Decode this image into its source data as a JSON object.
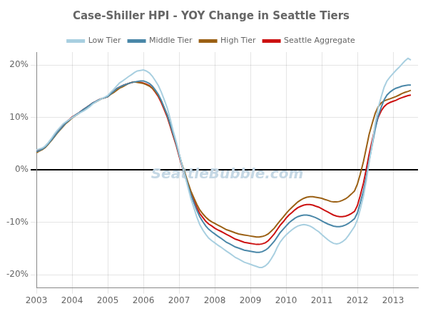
{
  "chart_data": {
    "type": "line",
    "title": "Case-Shiller HPI - YOY Change in Seattle Tiers",
    "x": [
      2003.0,
      2003.08,
      2003.17,
      2003.25,
      2003.33,
      2003.42,
      2003.5,
      2003.58,
      2003.67,
      2003.75,
      2003.83,
      2003.92,
      2004.0,
      2004.08,
      2004.17,
      2004.25,
      2004.33,
      2004.42,
      2004.5,
      2004.58,
      2004.67,
      2004.75,
      2004.83,
      2004.92,
      2005.0,
      2005.08,
      2005.17,
      2005.25,
      2005.33,
      2005.42,
      2005.5,
      2005.58,
      2005.67,
      2005.75,
      2005.83,
      2005.92,
      2006.0,
      2006.08,
      2006.17,
      2006.25,
      2006.33,
      2006.42,
      2006.5,
      2006.58,
      2006.67,
      2006.75,
      2006.83,
      2006.92,
      2007.0,
      2007.08,
      2007.17,
      2007.25,
      2007.33,
      2007.42,
      2007.5,
      2007.58,
      2007.67,
      2007.75,
      2007.83,
      2007.92,
      2008.0,
      2008.08,
      2008.17,
      2008.25,
      2008.33,
      2008.42,
      2008.5,
      2008.58,
      2008.67,
      2008.75,
      2008.83,
      2008.92,
      2009.0,
      2009.08,
      2009.17,
      2009.25,
      2009.33,
      2009.42,
      2009.5,
      2009.58,
      2009.67,
      2009.75,
      2009.83,
      2009.92,
      2010.0,
      2010.08,
      2010.17,
      2010.25,
      2010.33,
      2010.42,
      2010.5,
      2010.58,
      2010.67,
      2010.75,
      2010.83,
      2010.92,
      2011.0,
      2011.08,
      2011.17,
      2011.25,
      2011.33,
      2011.42,
      2011.5,
      2011.58,
      2011.67,
      2011.75,
      2011.83,
      2011.92,
      2012.0,
      2012.08,
      2012.17,
      2012.25,
      2012.33,
      2012.42,
      2012.5,
      2012.58,
      2012.67,
      2012.75,
      2012.83,
      2012.92,
      2013.0,
      2013.08,
      2013.17,
      2013.25,
      2013.33,
      2013.42,
      2013.5
    ],
    "series": [
      {
        "name": "Low Tier",
        "color": "#a8cfe0",
        "values": [
          0.038,
          0.04,
          0.042,
          0.046,
          0.052,
          0.06,
          0.068,
          0.075,
          0.082,
          0.088,
          0.092,
          0.096,
          0.1,
          0.103,
          0.107,
          0.11,
          0.113,
          0.117,
          0.121,
          0.126,
          0.13,
          0.133,
          0.136,
          0.139,
          0.142,
          0.148,
          0.154,
          0.16,
          0.166,
          0.17,
          0.174,
          0.178,
          0.182,
          0.186,
          0.189,
          0.19,
          0.191,
          0.189,
          0.185,
          0.179,
          0.171,
          0.161,
          0.149,
          0.135,
          0.118,
          0.098,
          0.076,
          0.054,
          0.032,
          0.01,
          -0.012,
          -0.033,
          -0.054,
          -0.073,
          -0.09,
          -0.104,
          -0.115,
          -0.123,
          -0.13,
          -0.135,
          -0.139,
          -0.143,
          -0.147,
          -0.151,
          -0.155,
          -0.159,
          -0.163,
          -0.167,
          -0.17,
          -0.173,
          -0.176,
          -0.178,
          -0.18,
          -0.182,
          -0.184,
          -0.186,
          -0.186,
          -0.183,
          -0.178,
          -0.17,
          -0.16,
          -0.148,
          -0.138,
          -0.13,
          -0.124,
          -0.119,
          -0.114,
          -0.11,
          -0.107,
          -0.105,
          -0.104,
          -0.105,
          -0.107,
          -0.11,
          -0.114,
          -0.118,
          -0.123,
          -0.128,
          -0.133,
          -0.137,
          -0.14,
          -0.141,
          -0.14,
          -0.137,
          -0.132,
          -0.125,
          -0.117,
          -0.108,
          -0.095,
          -0.075,
          -0.05,
          -0.02,
          0.015,
          0.052,
          0.088,
          0.118,
          0.14,
          0.158,
          0.17,
          0.178,
          0.184,
          0.19,
          0.196,
          0.202,
          0.208,
          0.213,
          0.21
        ]
      },
      {
        "name": "Middle Tier",
        "color": "#4a87a8",
        "values": [
          0.035,
          0.037,
          0.04,
          0.044,
          0.05,
          0.057,
          0.064,
          0.071,
          0.078,
          0.084,
          0.09,
          0.095,
          0.1,
          0.104,
          0.108,
          0.112,
          0.116,
          0.12,
          0.124,
          0.128,
          0.131,
          0.134,
          0.136,
          0.138,
          0.14,
          0.145,
          0.15,
          0.155,
          0.158,
          0.161,
          0.163,
          0.165,
          0.167,
          0.168,
          0.169,
          0.17,
          0.17,
          0.168,
          0.165,
          0.16,
          0.153,
          0.144,
          0.133,
          0.12,
          0.105,
          0.088,
          0.07,
          0.05,
          0.03,
          0.01,
          -0.01,
          -0.029,
          -0.047,
          -0.063,
          -0.077,
          -0.089,
          -0.099,
          -0.107,
          -0.113,
          -0.118,
          -0.122,
          -0.126,
          -0.13,
          -0.134,
          -0.138,
          -0.141,
          -0.144,
          -0.147,
          -0.149,
          -0.151,
          -0.153,
          -0.154,
          -0.155,
          -0.156,
          -0.157,
          -0.157,
          -0.156,
          -0.153,
          -0.149,
          -0.143,
          -0.136,
          -0.128,
          -0.12,
          -0.113,
          -0.107,
          -0.101,
          -0.096,
          -0.092,
          -0.089,
          -0.087,
          -0.086,
          -0.086,
          -0.087,
          -0.089,
          -0.091,
          -0.094,
          -0.097,
          -0.1,
          -0.103,
          -0.105,
          -0.107,
          -0.108,
          -0.108,
          -0.107,
          -0.105,
          -0.102,
          -0.098,
          -0.093,
          -0.082,
          -0.063,
          -0.04,
          -0.013,
          0.018,
          0.05,
          0.078,
          0.102,
          0.12,
          0.134,
          0.143,
          0.149,
          0.153,
          0.156,
          0.158,
          0.16,
          0.161,
          0.162,
          0.162
        ]
      },
      {
        "name": "High Tier",
        "color": "#9b6014",
        "values": [
          0.033,
          0.036,
          0.039,
          0.043,
          0.049,
          0.056,
          0.063,
          0.07,
          0.077,
          0.083,
          0.089,
          0.094,
          0.099,
          0.103,
          0.107,
          0.111,
          0.115,
          0.119,
          0.123,
          0.127,
          0.13,
          0.133,
          0.136,
          0.138,
          0.14,
          0.144,
          0.148,
          0.152,
          0.156,
          0.159,
          0.162,
          0.165,
          0.167,
          0.168,
          0.167,
          0.166,
          0.165,
          0.163,
          0.16,
          0.156,
          0.15,
          0.142,
          0.132,
          0.119,
          0.104,
          0.087,
          0.069,
          0.05,
          0.03,
          0.011,
          -0.007,
          -0.024,
          -0.04,
          -0.054,
          -0.066,
          -0.076,
          -0.084,
          -0.09,
          -0.095,
          -0.099,
          -0.102,
          -0.105,
          -0.108,
          -0.111,
          -0.114,
          -0.116,
          -0.118,
          -0.12,
          -0.122,
          -0.123,
          -0.124,
          -0.125,
          -0.126,
          -0.127,
          -0.128,
          -0.128,
          -0.127,
          -0.125,
          -0.122,
          -0.117,
          -0.111,
          -0.104,
          -0.097,
          -0.09,
          -0.083,
          -0.077,
          -0.071,
          -0.066,
          -0.061,
          -0.057,
          -0.054,
          -0.052,
          -0.051,
          -0.051,
          -0.052,
          -0.053,
          -0.054,
          -0.056,
          -0.058,
          -0.06,
          -0.061,
          -0.061,
          -0.06,
          -0.058,
          -0.055,
          -0.051,
          -0.046,
          -0.04,
          -0.027,
          -0.008,
          0.016,
          0.042,
          0.068,
          0.09,
          0.108,
          0.12,
          0.128,
          0.132,
          0.134,
          0.136,
          0.138,
          0.14,
          0.143,
          0.146,
          0.148,
          0.15,
          0.152
        ]
      },
      {
        "name": "Seattle Aggregate",
        "color": "#cc1111",
        "values": [
          0.036,
          0.038,
          0.041,
          0.045,
          0.051,
          0.058,
          0.065,
          0.072,
          0.079,
          0.085,
          0.091,
          0.096,
          0.101,
          0.104,
          0.108,
          0.112,
          0.116,
          0.12,
          0.124,
          0.128,
          0.131,
          0.134,
          0.136,
          0.138,
          0.14,
          0.145,
          0.15,
          0.155,
          0.158,
          0.161,
          0.163,
          0.165,
          0.167,
          0.168,
          0.168,
          0.167,
          0.166,
          0.164,
          0.161,
          0.156,
          0.149,
          0.14,
          0.129,
          0.116,
          0.101,
          0.084,
          0.066,
          0.047,
          0.027,
          0.008,
          -0.011,
          -0.028,
          -0.045,
          -0.059,
          -0.072,
          -0.083,
          -0.091,
          -0.098,
          -0.103,
          -0.107,
          -0.111,
          -0.114,
          -0.117,
          -0.12,
          -0.123,
          -0.126,
          -0.129,
          -0.132,
          -0.134,
          -0.136,
          -0.138,
          -0.139,
          -0.14,
          -0.141,
          -0.142,
          -0.142,
          -0.141,
          -0.139,
          -0.135,
          -0.129,
          -0.122,
          -0.114,
          -0.106,
          -0.099,
          -0.092,
          -0.086,
          -0.081,
          -0.076,
          -0.072,
          -0.069,
          -0.067,
          -0.066,
          -0.066,
          -0.067,
          -0.069,
          -0.071,
          -0.074,
          -0.077,
          -0.08,
          -0.083,
          -0.086,
          -0.088,
          -0.089,
          -0.089,
          -0.088,
          -0.086,
          -0.083,
          -0.079,
          -0.068,
          -0.049,
          -0.025,
          0.002,
          0.03,
          0.058,
          0.082,
          0.1,
          0.113,
          0.121,
          0.126,
          0.129,
          0.131,
          0.133,
          0.136,
          0.138,
          0.14,
          0.142,
          0.143
        ]
      }
    ],
    "xlim": [
      2003.0,
      2013.7
    ],
    "xticks": [
      2003,
      2004,
      2005,
      2006,
      2007,
      2008,
      2009,
      2010,
      2011,
      2012,
      2013
    ],
    "ylim": [
      -0.225,
      0.225
    ],
    "yticks": [
      {
        "value": -0.2,
        "label": "-20%"
      },
      {
        "value": -0.1,
        "label": "-10%"
      },
      {
        "value": 0,
        "label": "0%"
      },
      {
        "value": 0.1,
        "label": "10%"
      },
      {
        "value": 0.2,
        "label": "20%"
      }
    ],
    "annotations": [
      {
        "text": "SeattleBubble.com",
        "color": "#c5d8e5"
      }
    ],
    "grid": true,
    "legend": "top"
  }
}
